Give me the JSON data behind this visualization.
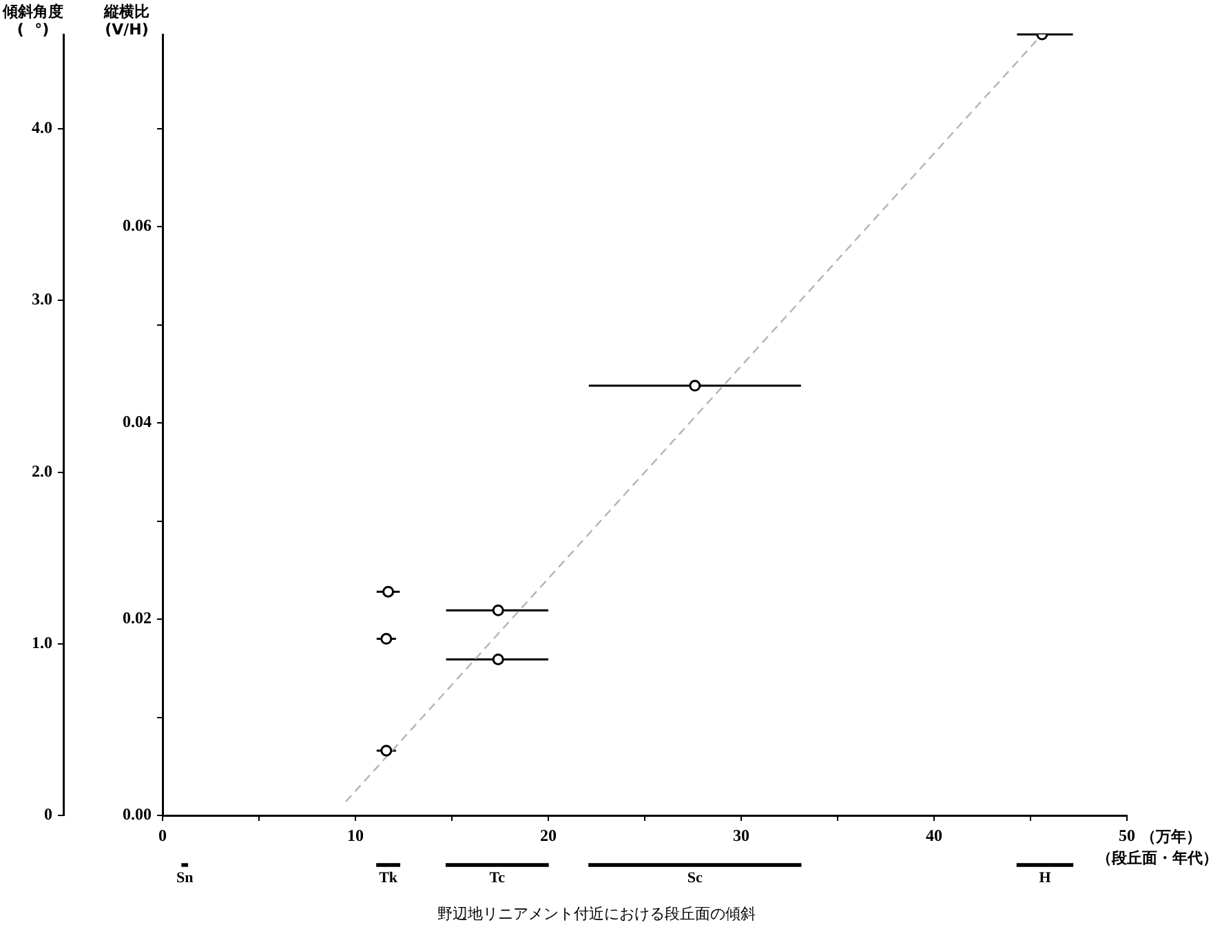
{
  "chart_data": [
    {
      "type": "scatter",
      "title": "野辺地リニアメント付近における段丘面の傾斜",
      "xlabel": "（万年）",
      "ylabel": "縦横比\n(V/H)",
      "y2label": "傾斜角度\n(  °)",
      "xlim": [
        0,
        50
      ],
      "xticks": [
        0,
        {
          "value": 5,
          "label": null
        },
        10,
        {
          "value": 15,
          "label": null
        },
        20,
        {
          "value": 25,
          "label": null
        },
        30,
        {
          "value": 35,
          "label": null
        },
        40,
        {
          "value": 45,
          "label": null
        },
        50
      ],
      "ylim": [
        0,
        0.0796
      ],
      "yticks": [
        {
          "value": 0,
          "label": "0.00"
        },
        {
          "value": 0.01,
          "label": null
        },
        {
          "value": 0.02,
          "label": "0.02"
        },
        {
          "value": 0.03,
          "label": null
        },
        {
          "value": 0.04,
          "label": "0.04"
        },
        {
          "value": 0.05,
          "label": null
        },
        {
          "value": 0.06,
          "label": "0.06"
        },
        {
          "value": 0.07,
          "label": null
        }
      ],
      "y2lim": [
        0,
        4.55
      ],
      "y2ticks": [
        0,
        {
          "value": 1,
          "label": "1.0"
        },
        {
          "value": 2,
          "label": "2.0"
        },
        {
          "value": 3,
          "label": "3.0"
        },
        {
          "value": 4,
          "label": "4.0"
        }
      ],
      "series": [
        {
          "type": "line",
          "color": "#b4b4b4",
          "line_style": "dashed",
          "marker": "none",
          "x": [
            9.5,
            45.6
          ],
          "values": [
            0.0014,
            0.0796
          ]
        },
        {
          "type": "scatter",
          "color": "#000000",
          "marker": "circle",
          "x": [
            11.7,
            11.6,
            11.6,
            17.4,
            17.4,
            27.6,
            45.6
          ],
          "values": [
            0.0228,
            0.018,
            0.0066,
            0.0209,
            0.0159,
            0.0438,
            0.0796
          ],
          "xerrors": [
            [
              11.1,
              12.3
            ],
            [
              11.1,
              12.1
            ],
            [
              11.1,
              12.1
            ],
            [
              14.7,
              20.0
            ],
            [
              14.7,
              20.0
            ],
            [
              22.1,
              33.1
            ],
            [
              44.3,
              47.2
            ]
          ]
        }
      ],
      "grid": false
    },
    {
      "type": "bar",
      "orientation": "horizontal",
      "categories": [
        null
      ],
      "xlim": [
        0,
        50
      ],
      "tick_labels": false,
      "annotations": [
        "（段丘面・年代）"
      ],
      "series": [
        {
          "name": "Sn",
          "color": "#000000",
          "base": [
            1.0
          ],
          "values": [
            0.3
          ]
        },
        {
          "name": "Tk",
          "color": "#000000",
          "base": [
            11.1
          ],
          "values": [
            1.2
          ]
        },
        {
          "name": "Tc",
          "color": "#000000",
          "base": [
            14.7
          ],
          "values": [
            5.3
          ]
        },
        {
          "name": "Sc",
          "color": "#000000",
          "base": [
            22.1
          ],
          "values": [
            11.0
          ]
        },
        {
          "name": "H",
          "color": "#000000",
          "base": [
            44.3
          ],
          "values": [
            2.9
          ]
        }
      ]
    }
  ]
}
